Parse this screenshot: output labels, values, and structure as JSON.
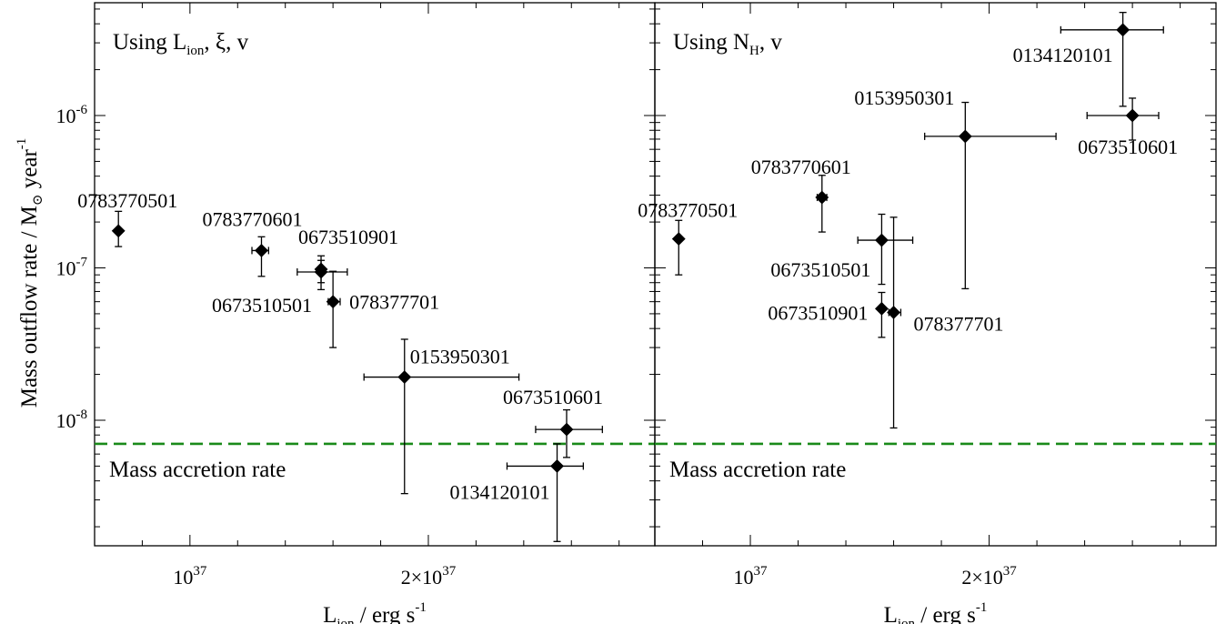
{
  "chart_data": {
    "type": "scatter",
    "y_axis": {
      "label_main": "Mass outflow rate / M",
      "label_sun": "⊙",
      "label_unit": " year",
      "label_sup": "-1",
      "scale": "log",
      "ylim": [
        1.5e-09,
        5.5e-06
      ],
      "major_ticks": [
        {
          "value": 1e-08,
          "base": "10",
          "exp": "-8"
        },
        {
          "value": 1e-07,
          "base": "10",
          "exp": "-7"
        },
        {
          "value": 1e-06,
          "base": "10",
          "exp": "-6"
        }
      ]
    },
    "x_axis": {
      "label_main": "L",
      "label_sub": "ion",
      "label_unit": " / erg s",
      "label_sup": "-1",
      "scale": "linear",
      "xlim": [
        6e+36,
        2.95e+37
      ],
      "ticks": [
        {
          "value": 1e+37,
          "pre": "",
          "base": "10",
          "exp": "37"
        },
        {
          "value": 2e+37,
          "pre": "2×",
          "base": "10",
          "exp": "37"
        }
      ]
    },
    "accretion_rate": {
      "value": 7e-09,
      "color": "#1a8a1a",
      "label": "Mass accretion rate"
    },
    "panels": [
      {
        "title_pre": "Using L",
        "title_sub": "ion",
        "title_post": ", ξ, v",
        "points": [
          {
            "label": "0783770501",
            "x": 7e+36,
            "xlo": 7e+36,
            "xhi": 7e+36,
            "y": 1.75e-07,
            "ylo": 1.38e-07,
            "yhi": 2.35e-07,
            "lx": -45,
            "ly": -26,
            "anchor": "start"
          },
          {
            "label": "0783770601",
            "x": 1.3e+37,
            "xlo": 1.26e+37,
            "xhi": 1.33e+37,
            "y": 1.3e-07,
            "ylo": 8.8e-08,
            "yhi": 1.6e-07,
            "lx": -65,
            "ly": -27,
            "anchor": "start"
          },
          {
            "label": "0673510901",
            "x": 1.55e+37,
            "xlo": 1.55e+37,
            "xhi": 1.55e+37,
            "y": 9.8e-08,
            "ylo": 8e-08,
            "yhi": 1.2e-07,
            "lx": -25,
            "ly": -28,
            "anchor": "start"
          },
          {
            "label": "0673510501",
            "x": 1.55e+37,
            "xlo": 1.45e+37,
            "xhi": 1.66e+37,
            "y": 9.4e-08,
            "ylo": 7.2e-08,
            "yhi": 1.12e-07,
            "lx": -10,
            "ly": 44,
            "anchor": "end"
          },
          {
            "label": "078377701",
            "x": 1.6e+37,
            "xlo": 1.58e+37,
            "xhi": 1.63e+37,
            "y": 6e-08,
            "ylo": 3e-08,
            "yhi": 9.5e-08,
            "lx": 18,
            "ly": 8,
            "anchor": "start"
          },
          {
            "label": "0153950301",
            "x": 1.9e+37,
            "xlo": 1.73e+37,
            "xhi": 2.38e+37,
            "y": 1.92e-08,
            "ylo": 3.3e-09,
            "yhi": 3.4e-08,
            "lx": 6,
            "ly": -15,
            "anchor": "start"
          },
          {
            "label": "0673510601",
            "x": 2.58e+37,
            "xlo": 2.45e+37,
            "xhi": 2.73e+37,
            "y": 8.7e-09,
            "ylo": 5.7e-09,
            "yhi": 1.17e-08,
            "lx": -70,
            "ly": -28,
            "anchor": "start"
          },
          {
            "label": "0134120101",
            "x": 2.54e+37,
            "xlo": 2.33e+37,
            "xhi": 2.65e+37,
            "y": 5e-09,
            "ylo": 1.6e-09,
            "yhi": 7e-09,
            "lx": -8,
            "ly": 36,
            "anchor": "end"
          }
        ]
      },
      {
        "title_pre": "Using N",
        "title_sub": "H",
        "title_post": ", v",
        "points": [
          {
            "label": "0783770501",
            "x": 7e+36,
            "xlo": 7e+36,
            "xhi": 7e+36,
            "y": 1.55e-07,
            "ylo": 9e-08,
            "yhi": 2.05e-07,
            "lx": -45,
            "ly": -24,
            "anchor": "start"
          },
          {
            "label": "0783770601",
            "x": 1.3e+37,
            "xlo": 1.28e+37,
            "xhi": 1.32e+37,
            "y": 2.9e-07,
            "ylo": 1.72e-07,
            "yhi": 4.05e-07,
            "lx": -78,
            "ly": -26,
            "anchor": "start"
          },
          {
            "label": "0673510501",
            "x": 1.55e+37,
            "xlo": 1.45e+37,
            "xhi": 1.68e+37,
            "y": 1.52e-07,
            "ylo": 7.8e-08,
            "yhi": 2.25e-07,
            "lx": -12,
            "ly": 40,
            "anchor": "end"
          },
          {
            "label": "0673510901",
            "x": 1.55e+37,
            "xlo": 1.55e+37,
            "xhi": 1.55e+37,
            "y": 5.4e-08,
            "ylo": 3.5e-08,
            "yhi": 6.9e-08,
            "lx": -15,
            "ly": 12,
            "anchor": "end"
          },
          {
            "label": "078377701",
            "x": 1.6e+37,
            "xlo": 1.58e+37,
            "xhi": 1.63e+37,
            "y": 5.1e-08,
            "ylo": 8.9e-09,
            "yhi": 2.15e-07,
            "lx": 22,
            "ly": 20,
            "anchor": "start"
          },
          {
            "label": "0153950301",
            "x": 1.9e+37,
            "xlo": 1.73e+37,
            "xhi": 2.28e+37,
            "y": 7.3e-07,
            "ylo": 7.3e-08,
            "yhi": 1.22e-06,
            "lx": -12,
            "ly": -35,
            "anchor": "end"
          },
          {
            "label": "0134120101",
            "x": 2.56e+37,
            "xlo": 2.3e+37,
            "xhi": 2.73e+37,
            "y": 3.65e-06,
            "ylo": 1.15e-06,
            "yhi": 4.75e-06,
            "lx": -11,
            "ly": 35,
            "anchor": "end"
          },
          {
            "label": "0673510601",
            "x": 2.6e+37,
            "xlo": 2.41e+37,
            "xhi": 2.71e+37,
            "y": 1e-06,
            "ylo": 6.9e-07,
            "yhi": 1.3e-06,
            "lx": -60,
            "ly": 42,
            "anchor": "start"
          }
        ]
      }
    ]
  }
}
